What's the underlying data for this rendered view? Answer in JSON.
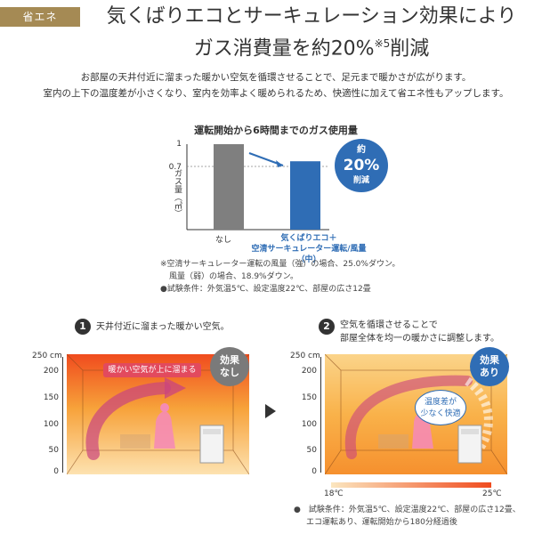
{
  "header": {
    "tag": "省エネ",
    "title_line1": "気くばりエコとサーキュレーション効果により",
    "title_line2_pre": "ガス消費量を約20%",
    "title_line2_sup": "※5",
    "title_line2_post": "削減"
  },
  "intro": {
    "line1": "お部屋の天井付近に溜まった暖かい空気を循環させることで、足元まで暖かさが広がります。",
    "line2": "室内の上下の温度差が小さくなり、室内を効率よく暖められるため、快適性に加えて省エネ性もアップします。"
  },
  "chart_data": {
    "type": "bar",
    "title": "運転開始から6時間までのガス使用量",
    "ylabel": "ガス量（㎥）",
    "yticks": [
      "1",
      "0.7"
    ],
    "ylim": [
      0,
      1
    ],
    "categories": [
      "なし",
      "気くばりエコ＋空清サーキュレーター運転/風量（中）"
    ],
    "values": [
      1,
      0.8
    ],
    "category_label_line1": "なし",
    "category_label2_line1": "気くばりエコ＋",
    "category_label2_line2": "空清サーキュレーター運転/風量（中）",
    "callout_top": "約",
    "callout_value": "20%",
    "callout_bottom": "削減",
    "colors": {
      "bar_without": "#7f7f7f",
      "bar_with": "#2f6db5",
      "callout": "#2f6db5"
    }
  },
  "notes": {
    "line1": "※空清サーキュレーター運転の風量（強）の場合、25.0%ダウン。",
    "line2": "風量（弱）の場合、18.9%ダウン。",
    "line3": "●試験条件：外気温5℃、設定温度22℃、部屋の広さ12畳"
  },
  "panel1": {
    "number": "1",
    "text": "天井付近に溜まった暖かい空気。",
    "label": "暖かい空気が上に溜まる",
    "badge_line1": "効果",
    "badge_line2": "なし",
    "scale_unit": "250 cm",
    "scale": [
      "200",
      "150",
      "100",
      "50",
      "0"
    ],
    "badge_color": "#7a7a7a"
  },
  "panel2": {
    "number": "2",
    "text_line1": "空気を循環させることで",
    "text_line2": "部屋全体を均一の暖かさに調整します。",
    "bubble_line1": "温度差が",
    "bubble_line2": "少なく快適",
    "badge_line1": "効果",
    "badge_line2": "あり",
    "scale_unit": "250 cm",
    "scale": [
      "200",
      "150",
      "100",
      "50",
      "0"
    ],
    "badge_color": "#2f6db5",
    "temp_low": "18℃",
    "temp_high": "25℃"
  },
  "footer": {
    "line1": "●　試験条件：外気温5℃、設定温度22℃、部屋の広さ12畳、",
    "line2": "エコ運転あり、運転開始から180分経過後"
  },
  "icons": {
    "arrow": "play-arrow-icon"
  }
}
